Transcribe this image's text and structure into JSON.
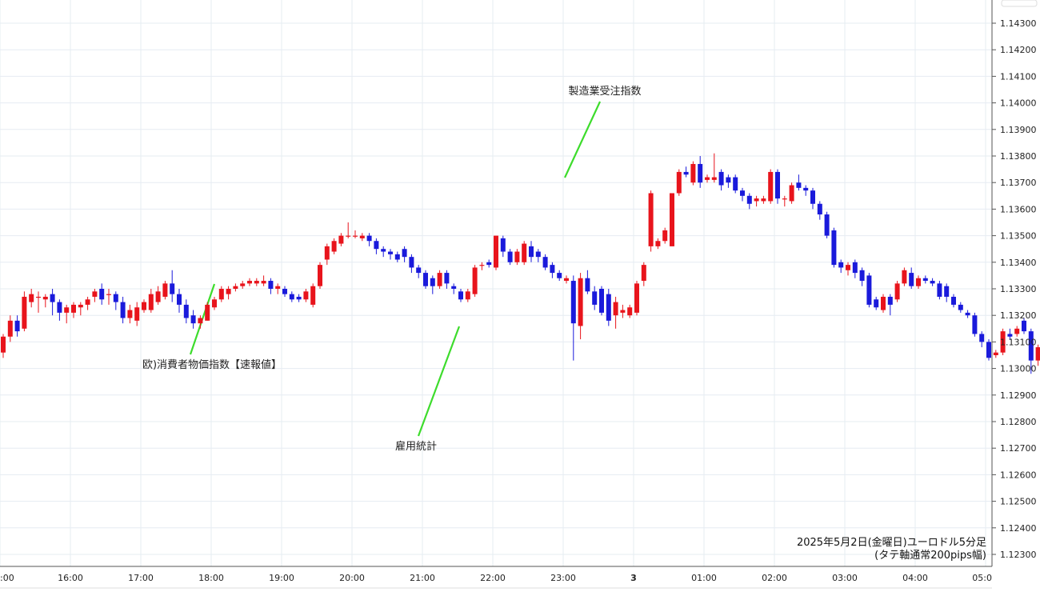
{
  "chart_data": {
    "type": "candlestick",
    "note_line1": "2025年5月2日(金曜日)ユーロドル5分足",
    "note_line2": "(タテ軸通常200pips幅)",
    "colors": {
      "up": "#e8141c",
      "down": "#1a1adb",
      "annotation_line": "#3ddc2c",
      "grid": "#e6ecf2"
    },
    "grid": true,
    "ylim": [
      1.1225,
      1.145
    ],
    "y_ticks": [
      "1.14300",
      "1.14200",
      "1.14100",
      "1.14000",
      "1.13900",
      "1.13800",
      "1.13700",
      "1.13600",
      "1.13500",
      "1.13400",
      "1.13300",
      "1.13200",
      "1.13100",
      "1.13000",
      "1.12900",
      "1.12800",
      "1.12700",
      "1.12600",
      "1.12500",
      "1.12400",
      "1.12300"
    ],
    "x_ticks": [
      ":00",
      "16:00",
      "17:00",
      "18:00",
      "19:00",
      "20:00",
      "21:00",
      "22:00",
      "23:00",
      "3",
      "01:00",
      "02:00",
      "03:00",
      "04:00",
      "05:0"
    ],
    "annotations": [
      {
        "label": "欧)消費者物価指数【速報値】",
        "time": "18:00"
      },
      {
        "label": "雇用統計",
        "time": "21:30"
      },
      {
        "label": "製造業受注指数",
        "time": "23:00"
      }
    ],
    "bars": [
      [
        1.1306,
        1.1312,
        1.1304,
        1.1313
      ],
      [
        1.1312,
        1.1318,
        1.131,
        1.132
      ],
      [
        1.1318,
        1.1314,
        1.1312,
        1.132
      ],
      [
        1.1315,
        1.1327,
        1.1314,
        1.1329
      ],
      [
        1.1325,
        1.1328,
        1.1323,
        1.133
      ],
      [
        1.1327,
        1.1327,
        1.1321,
        1.1329
      ],
      [
        1.1326,
        1.1327,
        1.1323,
        1.1328
      ],
      [
        1.1328,
        1.1325,
        1.132,
        1.133
      ],
      [
        1.1325,
        1.1321,
        1.1318,
        1.1326
      ],
      [
        1.1321,
        1.1323,
        1.1317,
        1.1324
      ],
      [
        1.1321,
        1.1324,
        1.1319,
        1.1325
      ],
      [
        1.1323,
        1.1324,
        1.132,
        1.1325
      ],
      [
        1.1324,
        1.1326,
        1.1322,
        1.1327
      ],
      [
        1.1327,
        1.1329,
        1.1325,
        1.133
      ],
      [
        1.133,
        1.1326,
        1.1324,
        1.1332
      ],
      [
        1.1328,
        1.1328,
        1.1324,
        1.133
      ],
      [
        1.1328,
        1.1325,
        1.1322,
        1.1329
      ],
      [
        1.1325,
        1.1319,
        1.1317,
        1.1327
      ],
      [
        1.1319,
        1.1322,
        1.1317,
        1.1324
      ],
      [
        1.1318,
        1.1323,
        1.1316,
        1.1325
      ],
      [
        1.1322,
        1.1325,
        1.1321,
        1.1326
      ],
      [
        1.1322,
        1.1328,
        1.1321,
        1.133
      ],
      [
        1.1325,
        1.1329,
        1.1324,
        1.1331
      ],
      [
        1.1327,
        1.1332,
        1.1326,
        1.1333
      ],
      [
        1.1332,
        1.1328,
        1.1325,
        1.1337
      ],
      [
        1.1328,
        1.1324,
        1.1321,
        1.133
      ],
      [
        1.1324,
        1.1319,
        1.1317,
        1.1326
      ],
      [
        1.132,
        1.1317,
        1.1315,
        1.1322
      ],
      [
        1.1317,
        1.1319,
        1.1315,
        1.132
      ],
      [
        1.1318,
        1.1324,
        1.1318,
        1.1325
      ],
      [
        1.1323,
        1.1326,
        1.1322,
        1.1327
      ],
      [
        1.1326,
        1.133,
        1.1325,
        1.1331
      ],
      [
        1.1328,
        1.133,
        1.1326,
        1.1331
      ],
      [
        1.133,
        1.1331,
        1.1329,
        1.1332
      ],
      [
        1.1331,
        1.1332,
        1.133,
        1.1333
      ],
      [
        1.1332,
        1.1333,
        1.1331,
        1.1334
      ],
      [
        1.1332,
        1.1333,
        1.1331,
        1.1334
      ],
      [
        1.1332,
        1.1333,
        1.1331,
        1.1335
      ],
      [
        1.1333,
        1.133,
        1.1328,
        1.1334
      ],
      [
        1.133,
        1.1331,
        1.1328,
        1.1332
      ],
      [
        1.133,
        1.1328,
        1.1327,
        1.1331
      ],
      [
        1.1328,
        1.1326,
        1.1325,
        1.1329
      ],
      [
        1.1327,
        1.1326,
        1.1325,
        1.1328
      ],
      [
        1.1326,
        1.1329,
        1.1325,
        1.133
      ],
      [
        1.1324,
        1.1331,
        1.1323,
        1.1332
      ],
      [
        1.1331,
        1.1339,
        1.133,
        1.134
      ],
      [
        1.1341,
        1.1346,
        1.1339,
        1.1347
      ],
      [
        1.1344,
        1.1348,
        1.1343,
        1.1349
      ],
      [
        1.1347,
        1.135,
        1.1346,
        1.1351
      ],
      [
        1.135,
        1.135,
        1.1349,
        1.1355
      ],
      [
        1.135,
        1.135,
        1.1349,
        1.1352
      ],
      [
        1.1349,
        1.135,
        1.1348,
        1.1351
      ],
      [
        1.135,
        1.1348,
        1.1346,
        1.1351
      ],
      [
        1.1348,
        1.1345,
        1.1343,
        1.1349
      ],
      [
        1.1345,
        1.1344,
        1.1342,
        1.1346
      ],
      [
        1.1344,
        1.1343,
        1.1341,
        1.1345
      ],
      [
        1.1343,
        1.1341,
        1.134,
        1.1344
      ],
      [
        1.1345,
        1.1342,
        1.134,
        1.1346
      ],
      [
        1.1342,
        1.1338,
        1.1336,
        1.1343
      ],
      [
        1.1338,
        1.1336,
        1.1334,
        1.1339
      ],
      [
        1.1336,
        1.1331,
        1.133,
        1.1337
      ],
      [
        1.1334,
        1.1331,
        1.1328,
        1.1335
      ],
      [
        1.1331,
        1.1336,
        1.133,
        1.1337
      ],
      [
        1.1336,
        1.1332,
        1.133,
        1.1337
      ],
      [
        1.1331,
        1.133,
        1.1328,
        1.1332
      ],
      [
        1.1329,
        1.1326,
        1.1325,
        1.133
      ],
      [
        1.1326,
        1.1329,
        1.1325,
        1.133
      ],
      [
        1.1328,
        1.1338,
        1.1327,
        1.1339
      ],
      [
        1.1339,
        1.1339,
        1.1337,
        1.134
      ],
      [
        1.134,
        1.1339,
        1.1338,
        1.1341
      ],
      [
        1.1338,
        1.135,
        1.1337,
        1.135
      ],
      [
        1.1349,
        1.1344,
        1.1342,
        1.135
      ],
      [
        1.1344,
        1.134,
        1.1339,
        1.1345
      ],
      [
        1.134,
        1.1344,
        1.1339,
        1.1345
      ],
      [
        1.134,
        1.1347,
        1.1339,
        1.1348
      ],
      [
        1.1346,
        1.1342,
        1.134,
        1.1348
      ],
      [
        1.1344,
        1.1342,
        1.134,
        1.1345
      ],
      [
        1.1342,
        1.1338,
        1.1337,
        1.1343
      ],
      [
        1.1339,
        1.1336,
        1.1334,
        1.134
      ],
      [
        1.1336,
        1.1334,
        1.1333,
        1.1337
      ],
      [
        1.1333,
        1.1334,
        1.1332,
        1.1335
      ],
      [
        1.1333,
        1.1317,
        1.1303,
        1.1335
      ],
      [
        1.1316,
        1.1334,
        1.1311,
        1.1336
      ],
      [
        1.1334,
        1.1329,
        1.1328,
        1.1337
      ],
      [
        1.1329,
        1.1324,
        1.1322,
        1.1331
      ],
      [
        1.133,
        1.1321,
        1.132,
        1.1331
      ],
      [
        1.1328,
        1.1318,
        1.1316,
        1.133
      ],
      [
        1.132,
        1.1325,
        1.1315,
        1.1327
      ],
      [
        1.1321,
        1.1322,
        1.1319,
        1.1324
      ],
      [
        1.132,
        1.1323,
        1.1319,
        1.1324
      ],
      [
        1.1321,
        1.1332,
        1.132,
        1.1333
      ],
      [
        1.1333,
        1.1339,
        1.1331,
        1.134
      ],
      [
        1.1346,
        1.1366,
        1.1344,
        1.1367
      ],
      [
        1.1346,
        1.1348,
        1.1345,
        1.1349
      ],
      [
        1.1348,
        1.1352,
        1.1347,
        1.1353
      ],
      [
        1.1346,
        1.1366,
        1.1346,
        1.1366
      ],
      [
        1.1366,
        1.1374,
        1.1365,
        1.1375
      ],
      [
        1.1374,
        1.1373,
        1.1372,
        1.1376
      ],
      [
        1.137,
        1.1377,
        1.1369,
        1.1378
      ],
      [
        1.1377,
        1.137,
        1.1368,
        1.138
      ],
      [
        1.1371,
        1.1372,
        1.137,
        1.1373
      ],
      [
        1.1371,
        1.1372,
        1.137,
        1.1381
      ],
      [
        1.1374,
        1.1369,
        1.1367,
        1.1375
      ],
      [
        1.1372,
        1.137,
        1.1368,
        1.1373
      ],
      [
        1.1372,
        1.1367,
        1.1366,
        1.1373
      ],
      [
        1.1367,
        1.1365,
        1.1363,
        1.1368
      ],
      [
        1.1365,
        1.1362,
        1.136,
        1.1366
      ],
      [
        1.1363,
        1.1364,
        1.1361,
        1.1365
      ],
      [
        1.1363,
        1.1364,
        1.1362,
        1.1365
      ],
      [
        1.1363,
        1.1374,
        1.1362,
        1.1375
      ],
      [
        1.1374,
        1.1364,
        1.1362,
        1.1375
      ],
      [
        1.1364,
        1.1364,
        1.1361,
        1.1365
      ],
      [
        1.1363,
        1.1369,
        1.1362,
        1.137
      ],
      [
        1.137,
        1.1368,
        1.1367,
        1.1373
      ],
      [
        1.1368,
        1.1367,
        1.1365,
        1.1369
      ],
      [
        1.1367,
        1.1362,
        1.136,
        1.1368
      ],
      [
        1.1362,
        1.1358,
        1.1356,
        1.1363
      ],
      [
        1.1358,
        1.135,
        1.1349,
        1.1359
      ],
      [
        1.1352,
        1.1339,
        1.1338,
        1.1353
      ],
      [
        1.134,
        1.1338,
        1.1336,
        1.1341
      ],
      [
        1.1337,
        1.1339,
        1.1335,
        1.134
      ],
      [
        1.134,
        1.1336,
        1.1334,
        1.1341
      ],
      [
        1.1337,
        1.1333,
        1.1331,
        1.1338
      ],
      [
        1.1335,
        1.1324,
        1.1323,
        1.1336
      ],
      [
        1.1326,
        1.1323,
        1.1322,
        1.1327
      ],
      [
        1.1322,
        1.1327,
        1.1321,
        1.1328
      ],
      [
        1.1327,
        1.1324,
        1.132,
        1.1328
      ],
      [
        1.1326,
        1.1332,
        1.1325,
        1.1333
      ],
      [
        1.1332,
        1.1337,
        1.1331,
        1.1338
      ],
      [
        1.1336,
        1.1331,
        1.133,
        1.1338
      ],
      [
        1.1331,
        1.1334,
        1.133,
        1.1335
      ],
      [
        1.1334,
        1.1333,
        1.1332,
        1.1335
      ],
      [
        1.1333,
        1.1332,
        1.1331,
        1.1334
      ],
      [
        1.1332,
        1.1327,
        1.1326,
        1.1333
      ],
      [
        1.1331,
        1.1327,
        1.1325,
        1.1332
      ],
      [
        1.1327,
        1.1324,
        1.1323,
        1.1328
      ],
      [
        1.1324,
        1.1322,
        1.1321,
        1.1325
      ],
      [
        1.1321,
        1.132,
        1.1319,
        1.1322
      ],
      [
        1.132,
        1.1313,
        1.1312,
        1.1321
      ],
      [
        1.1313,
        1.131,
        1.1308,
        1.1314
      ],
      [
        1.131,
        1.1304,
        1.1303,
        1.1311
      ],
      [
        1.1305,
        1.1306,
        1.1304,
        1.1307
      ],
      [
        1.1306,
        1.1314,
        1.1305,
        1.1315
      ],
      [
        1.1313,
        1.1312,
        1.1311,
        1.1315
      ],
      [
        1.1313,
        1.1315,
        1.1312,
        1.1316
      ],
      [
        1.1318,
        1.1314,
        1.1313,
        1.1319
      ],
      [
        1.1314,
        1.1303,
        1.1298,
        1.1315
      ],
      [
        1.1303,
        1.1308,
        1.1301,
        1.1309
      ],
      [
        1.1306,
        1.1309,
        1.1305,
        1.131
      ],
      [
        1.1309,
        1.1304,
        1.1303,
        1.131
      ],
      [
        1.1304,
        1.1307,
        1.1303,
        1.1308
      ],
      [
        1.1307,
        1.1305,
        1.1304,
        1.1308
      ],
      [
        1.1305,
        1.1301,
        1.13,
        1.1306
      ],
      [
        1.1304,
        1.1301,
        1.13,
        1.1305
      ],
      [
        1.1301,
        1.1305,
        1.13,
        1.1306
      ],
      [
        1.1305,
        1.1302,
        1.1301,
        1.1306
      ],
      [
        1.1302,
        1.1298,
        1.1297,
        1.1303
      ],
      [
        1.1298,
        1.1295,
        1.1294,
        1.1299
      ],
      [
        1.1296,
        1.1298,
        1.1294,
        1.1299
      ],
      [
        1.1296,
        1.1292,
        1.1291,
        1.1297
      ],
      [
        1.1293,
        1.13,
        1.1292,
        1.1301
      ],
      [
        1.13,
        1.1305,
        1.1299,
        1.1306
      ],
      [
        1.1305,
        1.1307,
        1.1304,
        1.1308
      ],
      [
        1.1306,
        1.1307,
        1.1305,
        1.1308
      ],
      [
        1.1307,
        1.1307,
        1.1305,
        1.1308
      ],
      [
        1.1307,
        1.1303,
        1.1302,
        1.1308
      ],
      [
        1.1303,
        1.1301,
        1.13,
        1.1304
      ],
      [
        1.1301,
        1.1305,
        1.13,
        1.1306
      ],
      [
        1.1305,
        1.1306,
        1.1304,
        1.1307
      ],
      [
        1.1306,
        1.1305,
        1.1304,
        1.1307
      ],
      [
        1.1305,
        1.1304,
        1.1303,
        1.1306
      ],
      [
        1.1304,
        1.1303,
        1.1302,
        1.1305
      ]
    ]
  }
}
